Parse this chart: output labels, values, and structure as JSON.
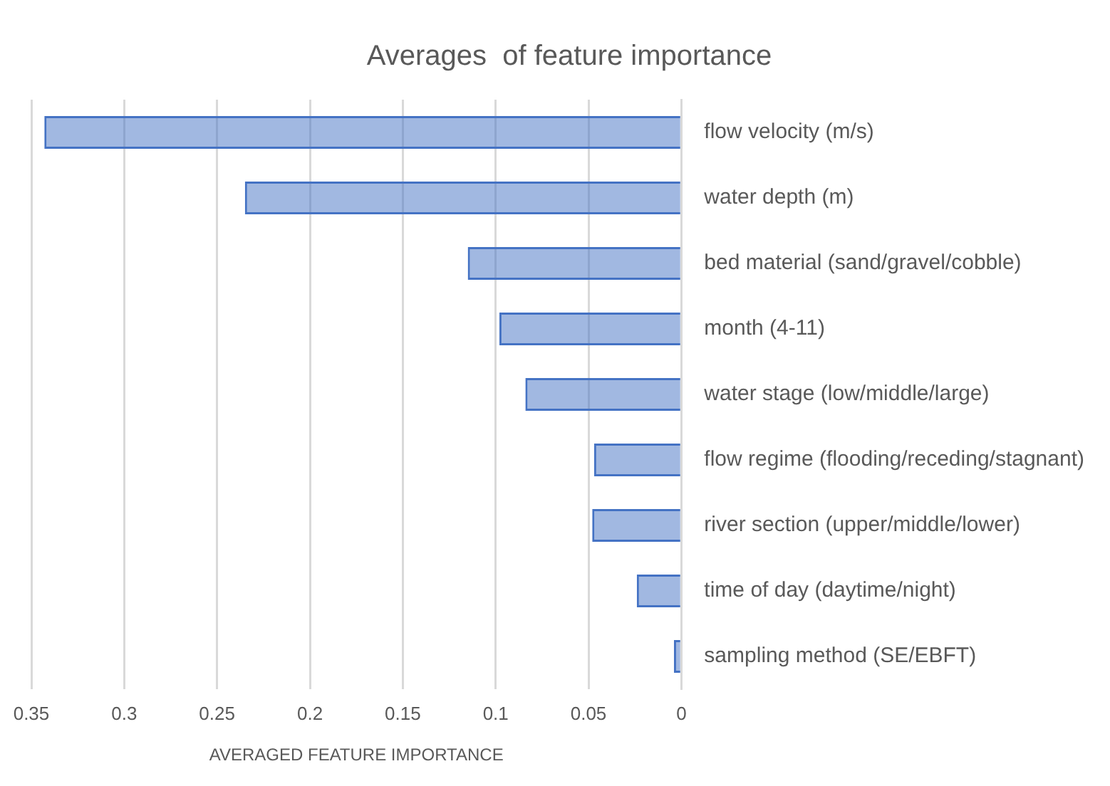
{
  "chart_data": {
    "type": "bar",
    "orientation": "horizontal",
    "title": "Averages  of feature importance",
    "xlabel": "AVERAGED FEATURE IMPORTANCE",
    "categories": [
      "flow velocity (m/s)",
      "water depth (m)",
      "bed material (sand/gravel/cobble)",
      "month (4-11)",
      "water stage (low/middle/large)",
      "flow regime (flooding/receding/stagnant)",
      "river section (upper/middle/lower)",
      "time of day (daytime/night)",
      "sampling method (SE/EBFT)"
    ],
    "values": [
      0.343,
      0.235,
      0.115,
      0.098,
      0.084,
      0.047,
      0.048,
      0.024,
      0.004
    ],
    "color": "#4472c4",
    "xlim": [
      0.35,
      0
    ],
    "xticks": [
      0,
      0.05,
      0.1,
      0.15,
      0.2,
      0.25,
      0.3,
      0.35
    ],
    "grid": "x",
    "legend": false
  }
}
